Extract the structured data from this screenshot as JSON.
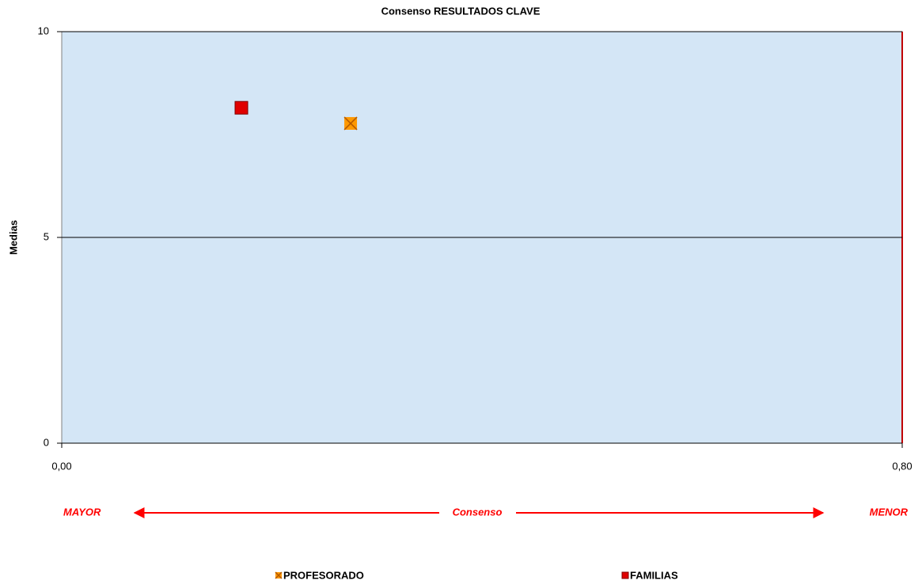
{
  "chart_data": {
    "type": "scatter",
    "title": "Consenso RESULTADOS CLAVE",
    "y_label": "Medias",
    "annotations": [
      "MAYOR",
      "Consenso",
      "MENOR"
    ],
    "series": [
      {
        "name": "PROFESORADO",
        "color": "#ff9900",
        "x": [
          0.275
        ],
        "values": [
          7.77
        ]
      },
      {
        "name": "FAMILIAS",
        "color": "#e00000",
        "x": [
          0.171
        ],
        "values": [
          8.15
        ]
      }
    ],
    "xlim": [
      0,
      0.8
    ],
    "xticks": [
      {
        "value": 0,
        "label": "0,00"
      },
      {
        "value": 0.8,
        "label": "0,80"
      }
    ],
    "ylim": [
      0,
      10
    ],
    "yticks": [
      0,
      5,
      10
    ],
    "grid": true
  }
}
